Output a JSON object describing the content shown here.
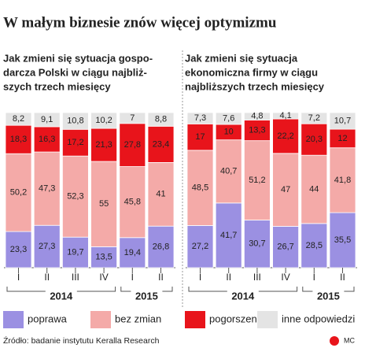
{
  "title": "W małym biznesie znów więcej optymizmu",
  "source": "Źródło: badanie instytutu Keralla Research",
  "logo": "MC",
  "chart_data": [
    {
      "type": "bar",
      "stacked": true,
      "subtitle": [
        "Jak zmieni się sytuacja gospo-",
        "darcza Polski w ciągu najbliż-",
        "szych trzech miesięcy"
      ],
      "categories": [
        "I",
        "II",
        "III",
        "IV",
        "I",
        "II"
      ],
      "years": [
        "2014",
        "2014",
        "2014",
        "2014",
        "2015",
        "2015"
      ],
      "ylim": [
        0,
        100
      ],
      "series": [
        {
          "name": "poprawa",
          "color": "#9b90e2",
          "values": [
            23.3,
            27.3,
            19.7,
            13.5,
            19.4,
            26.8
          ],
          "value_labels": [
            "23,3",
            "27,3",
            "19,7",
            "13,5",
            "19,4",
            "26,8"
          ]
        },
        {
          "name": "bez zmian",
          "color": "#f4aaa8",
          "values": [
            50.2,
            47.3,
            52.3,
            55,
            45.8,
            41
          ],
          "value_labels": [
            "50,2",
            "47,3",
            "52,3",
            "55",
            "45,8",
            "41"
          ]
        },
        {
          "name": "pogorszenie",
          "color": "#e8141b",
          "values": [
            18.3,
            16.3,
            17.2,
            21.3,
            27.8,
            23.4
          ],
          "value_labels": [
            "18,3",
            "16,3",
            "17,2",
            "21,3",
            "27,8",
            "23,4"
          ]
        },
        {
          "name": "inne odpowiedzi",
          "color": "#e4e4e4",
          "values": [
            8.2,
            9.1,
            10.8,
            10.2,
            7,
            8.8
          ],
          "value_labels": [
            "8,2",
            "9,1",
            "10,8",
            "10,2",
            "7",
            "8,8"
          ]
        }
      ]
    },
    {
      "type": "bar",
      "stacked": true,
      "subtitle": [
        "Jak zmieni się sytuacja",
        "ekonomiczna firmy w ciągu",
        "najbliższych trzech miesięcy"
      ],
      "categories": [
        "I",
        "II",
        "III",
        "IV",
        "I",
        "II"
      ],
      "years": [
        "2014",
        "2014",
        "2014",
        "2014",
        "2015",
        "2015"
      ],
      "ylim": [
        0,
        100
      ],
      "series": [
        {
          "name": "poprawa",
          "color": "#9b90e2",
          "values": [
            27.2,
            41.7,
            30.7,
            26.7,
            28.5,
            35.5
          ],
          "value_labels": [
            "27,2",
            "41,7",
            "30,7",
            "26,7",
            "28,5",
            "35,5"
          ]
        },
        {
          "name": "bez zmian",
          "color": "#f4aaa8",
          "values": [
            48.5,
            40.7,
            51.2,
            47,
            44,
            41.8
          ],
          "value_labels": [
            "48,5",
            "40,7",
            "51,2",
            "47",
            "44",
            "41,8"
          ]
        },
        {
          "name": "pogorszenie",
          "color": "#e8141b",
          "values": [
            17,
            10,
            13.3,
            22.2,
            20.3,
            12
          ],
          "value_labels": [
            "17",
            "10",
            "13,3",
            "22,2",
            "20,3",
            "12"
          ]
        },
        {
          "name": "inne odpowiedzi",
          "color": "#e4e4e4",
          "values": [
            7.3,
            7.6,
            4.8,
            4.1,
            7.2,
            10.7
          ],
          "value_labels": [
            "7,3",
            "7,6",
            "4,8",
            "4,1",
            "7,2",
            "10,7"
          ]
        }
      ]
    }
  ]
}
